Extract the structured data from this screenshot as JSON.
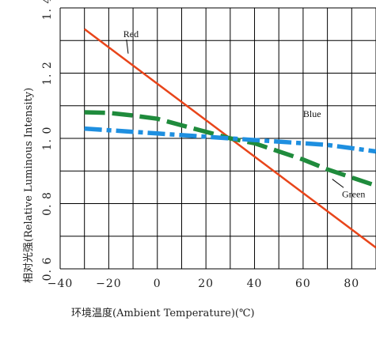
{
  "chart_data": {
    "type": "line",
    "xlabel": "环境温度(Ambient Temperature)(℃)",
    "ylabel": "相对光强(Relative Luminous Intensity)",
    "xlim": [
      -40,
      90
    ],
    "ylim": [
      0.6,
      1.4
    ],
    "x_ticks": [
      -40,
      -20,
      0,
      20,
      40,
      60,
      80
    ],
    "x_tick_labels": [
      "−40",
      "−20",
      "0",
      "20",
      "40",
      "60",
      "80"
    ],
    "y_ticks": [
      0.6,
      0.8,
      1.0,
      1.2,
      1.4
    ],
    "y_tick_labels": [
      "0. 6",
      "0. 8",
      "1. 0",
      "1. 2",
      "1. 4"
    ],
    "grid": true,
    "series": [
      {
        "name": "Red",
        "color": "#e8451a",
        "style": "solid",
        "x": [
          -30,
          90
        ],
        "y": [
          1.335,
          0.665
        ]
      },
      {
        "name": "Green",
        "color": "#1f8b3c",
        "style": "dashed",
        "x": [
          -30,
          -20,
          -10,
          0,
          10,
          20,
          30,
          40,
          50,
          60,
          70,
          80,
          90
        ],
        "y": [
          1.08,
          1.078,
          1.07,
          1.06,
          1.04,
          1.02,
          1.0,
          0.985,
          0.96,
          0.935,
          0.905,
          0.88,
          0.855
        ]
      },
      {
        "name": "Blue",
        "color": "#1e8fe0",
        "style": "dash-dot",
        "x": [
          -30,
          -20,
          -10,
          0,
          10,
          20,
          30,
          40,
          50,
          60,
          70,
          80,
          90
        ],
        "y": [
          1.03,
          1.025,
          1.02,
          1.015,
          1.01,
          1.005,
          1.0,
          0.995,
          0.99,
          0.985,
          0.98,
          0.97,
          0.96
        ]
      }
    ],
    "annotations": [
      {
        "text": "Red",
        "x": -14,
        "y": 1.31,
        "pointer_to": [
          -12,
          1.26
        ]
      },
      {
        "text": "Blue",
        "x": 60,
        "y": 1.065
      },
      {
        "text": "Green",
        "x": 76,
        "y": 0.82,
        "pointer_to": [
          72,
          0.875
        ]
      }
    ]
  }
}
